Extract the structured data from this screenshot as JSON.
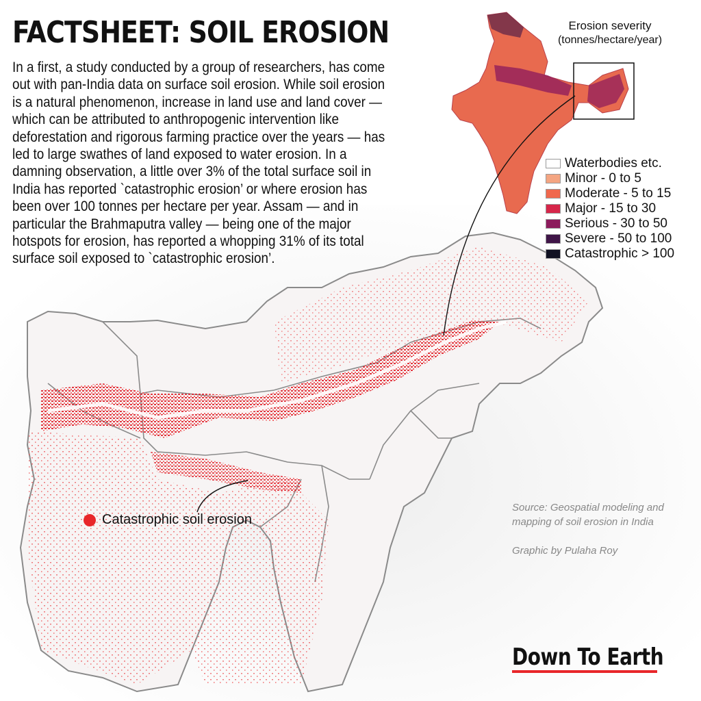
{
  "header": {
    "title": "FACTSHEET: SOIL EROSION",
    "intro": "In a first, a study conducted by a group of researchers, has come out with pan-India data on surface soil erosion. While soil erosion is a natural phenomenon, increase in land use and land cover — which can be attributed to anthropogenic intervention like deforestation and rigorous farming practice over the years — has led to large swathes of land exposed to water erosion. In a damning observation, a little over 3% of the total surface soil in India has reported `catastrophic erosion’ or where erosion has been over 100 tonnes per hectare per year. Assam — and in particular the Brahmaputra valley — being one of the major hotspots for erosion, has reported a whopping 31% of its total surface soil exposed to `catastrophic erosion’."
  },
  "legend": {
    "title": "Erosion severity",
    "units": "(tonnes/hectare/year)",
    "items": [
      {
        "label": "Waterbodies etc.",
        "color": "#ffffff"
      },
      {
        "label": "Minor - 0 to 5",
        "color": "#f4a582"
      },
      {
        "label": "Moderate - 5 to 15",
        "color": "#f0684d"
      },
      {
        "label": "Major - 15 to 30",
        "color": "#d6264a"
      },
      {
        "label": "Serious - 30 to 50",
        "color": "#8c1a5c"
      },
      {
        "label": "Severe - 50 to 100",
        "color": "#3f1547"
      },
      {
        "label": "Catastrophic > 100",
        "color": "#111122"
      }
    ]
  },
  "callout": {
    "label": "Catastrophic soil erosion",
    "color": "#e8262a"
  },
  "source": "Source:  Geospatial modeling and mapping of soil erosion in India",
  "credit": "Graphic by Pulaha Roy",
  "brand": {
    "name": "Down To Earth",
    "underline_color": "#e8262a"
  }
}
